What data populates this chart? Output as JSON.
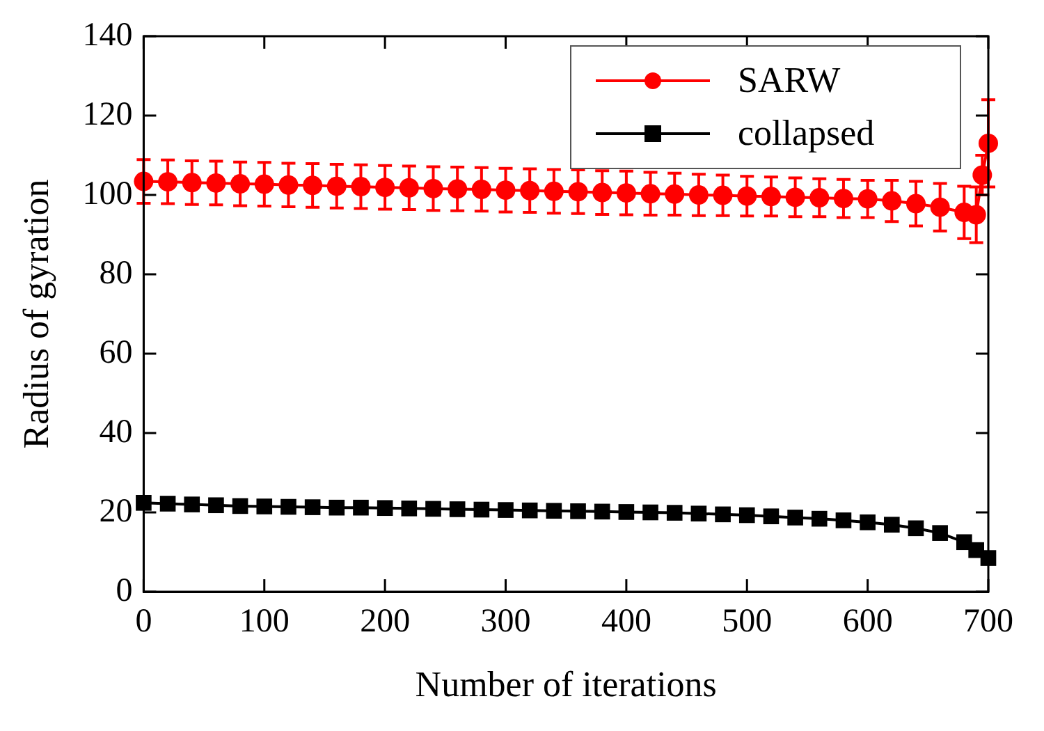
{
  "chart_data": {
    "type": "line",
    "xlabel": "Number of iterations",
    "ylabel": "Radius of gyration",
    "xlim": [
      0,
      700
    ],
    "xticks": [
      0,
      100,
      200,
      300,
      400,
      500,
      600,
      700
    ],
    "ylim": [
      0,
      140
    ],
    "yticks": [
      0,
      20,
      40,
      60,
      80,
      100,
      120,
      140
    ],
    "grid": false,
    "legend": "top right",
    "line_style": "solid",
    "series": [
      {
        "name": "SARW",
        "color": "#ff0000",
        "marker": "circle",
        "x": [
          0,
          20,
          40,
          60,
          80,
          100,
          120,
          140,
          160,
          180,
          200,
          220,
          240,
          260,
          280,
          300,
          320,
          340,
          360,
          380,
          400,
          420,
          440,
          460,
          480,
          500,
          520,
          540,
          560,
          580,
          600,
          620,
          640,
          660,
          680,
          690,
          695,
          700
        ],
        "values": [
          103.4,
          103.3,
          103.1,
          103.0,
          102.8,
          102.7,
          102.5,
          102.4,
          102.2,
          102.1,
          101.9,
          101.8,
          101.6,
          101.5,
          101.4,
          101.2,
          101.1,
          100.9,
          100.8,
          100.6,
          100.5,
          100.3,
          100.2,
          100.0,
          99.9,
          99.7,
          99.6,
          99.4,
          99.3,
          99.1,
          99.0,
          98.5,
          97.8,
          96.9,
          95.6,
          95.0,
          105.0,
          113.0
        ],
        "errors": [
          5.5,
          5.5,
          5.5,
          5.5,
          5.5,
          5.5,
          5.5,
          5.5,
          5.5,
          5.5,
          5.5,
          5.5,
          5.5,
          5.5,
          5.5,
          5.5,
          5.5,
          5.5,
          5.5,
          5.5,
          5.5,
          5.4,
          5.3,
          5.2,
          5.1,
          5.0,
          4.9,
          4.9,
          4.8,
          4.8,
          4.7,
          5.2,
          5.6,
          6.0,
          6.6,
          7.0,
          5.0,
          11.0
        ]
      },
      {
        "name": "collapsed",
        "color": "#000000",
        "marker": "square",
        "x": [
          0,
          20,
          40,
          60,
          80,
          100,
          120,
          140,
          160,
          180,
          200,
          220,
          240,
          260,
          280,
          300,
          320,
          340,
          360,
          380,
          400,
          420,
          440,
          460,
          480,
          500,
          520,
          540,
          560,
          580,
          600,
          620,
          640,
          660,
          680,
          690,
          700
        ],
        "values": [
          22.4,
          22.2,
          22.0,
          21.8,
          21.6,
          21.5,
          21.4,
          21.3,
          21.2,
          21.2,
          21.1,
          21.0,
          20.9,
          20.8,
          20.7,
          20.6,
          20.5,
          20.4,
          20.3,
          20.2,
          20.1,
          20.0,
          19.9,
          19.7,
          19.5,
          19.3,
          19.0,
          18.7,
          18.4,
          18.0,
          17.5,
          16.9,
          16.0,
          14.8,
          12.5,
          10.5,
          8.5
        ]
      }
    ]
  }
}
